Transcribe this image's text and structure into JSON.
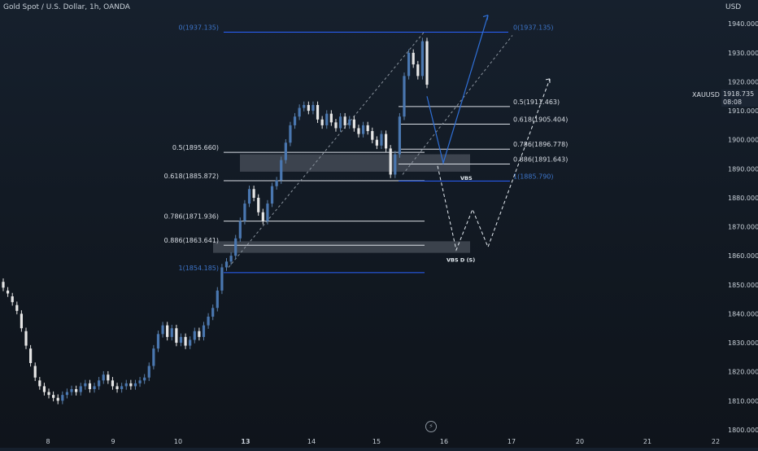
{
  "header": {
    "title": "Gold Spot / U.S. Dollar, 1h, OANDA",
    "currency": "USD",
    "symbol": "XAUUSD",
    "last_price": "1918.735",
    "countdown": "08:08"
  },
  "chart_data": {
    "type": "candlestick",
    "title": "Gold Spot / U.S. Dollar, 1h, OANDA",
    "ylim": [
      1798,
      1944
    ],
    "y_ticks": [
      "1940.000",
      "1930.000",
      "1920.000",
      "1910.000",
      "1900.000",
      "1890.000",
      "1880.000",
      "1870.000",
      "1860.000",
      "1850.000",
      "1840.000",
      "1830.000",
      "1820.000",
      "1810.000",
      "1800.000"
    ],
    "x_ticks": [
      "8",
      "9",
      "10",
      "13",
      "14",
      "15",
      "16",
      "17",
      "20",
      "21",
      "22"
    ],
    "x_ticks_bold": [
      "13"
    ],
    "candle_path": [
      [
        1851,
        1849
      ],
      [
        1848,
        1847
      ],
      [
        1846,
        1844
      ],
      [
        1843,
        1841
      ],
      [
        1840,
        1835
      ],
      [
        1834,
        1829
      ],
      [
        1828,
        1823
      ],
      [
        1822,
        1818
      ],
      [
        1817,
        1815
      ],
      [
        1815,
        1813
      ],
      [
        1813,
        1812
      ],
      [
        1812,
        1811
      ],
      [
        1811,
        1810
      ],
      [
        1810,
        1812
      ],
      [
        1812,
        1813
      ],
      [
        1813,
        1814
      ],
      [
        1814,
        1813
      ],
      [
        1813,
        1815
      ],
      [
        1815,
        1816
      ],
      [
        1816,
        1814
      ],
      [
        1814,
        1815
      ],
      [
        1815,
        1817
      ],
      [
        1817,
        1819
      ],
      [
        1819,
        1817
      ],
      [
        1817,
        1815
      ],
      [
        1815,
        1814
      ],
      [
        1814,
        1815
      ],
      [
        1815,
        1816
      ],
      [
        1816,
        1815
      ],
      [
        1815,
        1816
      ],
      [
        1816,
        1817
      ],
      [
        1817,
        1818
      ],
      [
        1818,
        1822
      ],
      [
        1822,
        1828
      ],
      [
        1828,
        1833
      ],
      [
        1833,
        1836
      ],
      [
        1836,
        1832
      ],
      [
        1832,
        1835
      ],
      [
        1835,
        1830
      ],
      [
        1830,
        1832
      ],
      [
        1832,
        1829
      ],
      [
        1829,
        1831
      ],
      [
        1831,
        1834
      ],
      [
        1834,
        1832
      ],
      [
        1832,
        1836
      ],
      [
        1836,
        1839
      ],
      [
        1839,
        1842
      ],
      [
        1842,
        1848
      ],
      [
        1848,
        1856
      ],
      [
        1856,
        1858
      ],
      [
        1858,
        1860
      ],
      [
        1860,
        1866
      ],
      [
        1866,
        1872
      ],
      [
        1872,
        1878
      ],
      [
        1878,
        1883
      ],
      [
        1883,
        1880
      ],
      [
        1880,
        1875
      ],
      [
        1875,
        1872
      ],
      [
        1872,
        1878
      ],
      [
        1878,
        1884
      ],
      [
        1884,
        1886
      ],
      [
        1886,
        1893
      ],
      [
        1893,
        1899
      ],
      [
        1899,
        1905
      ],
      [
        1905,
        1908
      ],
      [
        1908,
        1911
      ],
      [
        1911,
        1912
      ],
      [
        1912,
        1910
      ],
      [
        1910,
        1912
      ],
      [
        1912,
        1907
      ],
      [
        1907,
        1905
      ],
      [
        1905,
        1909
      ],
      [
        1909,
        1906
      ],
      [
        1906,
        1904
      ],
      [
        1904,
        1908
      ],
      [
        1908,
        1905
      ],
      [
        1905,
        1907
      ],
      [
        1907,
        1904
      ],
      [
        1904,
        1902
      ],
      [
        1902,
        1905
      ],
      [
        1905,
        1903
      ],
      [
        1903,
        1900
      ],
      [
        1900,
        1898
      ],
      [
        1898,
        1902
      ],
      [
        1902,
        1897
      ],
      [
        1897,
        1888
      ],
      [
        1888,
        1895
      ],
      [
        1895,
        1908
      ],
      [
        1908,
        1922
      ],
      [
        1922,
        1930
      ],
      [
        1930,
        1926
      ],
      [
        1926,
        1922
      ],
      [
        1922,
        1934
      ],
      [
        1934,
        1919
      ]
    ],
    "fib_left": {
      "labels": [
        "0(1937.135)",
        "0.5(1895.660)",
        "0.618(1885.872)",
        "0.786(1871.936)",
        "0.886(1863.641)",
        "1(1854.185)"
      ],
      "levels": [
        1937.135,
        1895.66,
        1885.872,
        1871.936,
        1863.641,
        1854.185
      ],
      "colors": [
        "#2962ff",
        "#d9dee5",
        "#d9dee5",
        "#d9dee5",
        "#d9dee5",
        "#2962ff"
      ]
    },
    "fib_right": {
      "labels": [
        "0(1937.135)",
        "0.5(1911.463)",
        "0.618(1905.404)",
        "0.786(1896.778)",
        "0.886(1891.643)",
        "1(1885.790)"
      ],
      "levels": [
        1937.135,
        1911.463,
        1905.404,
        1896.778,
        1891.643,
        1885.79
      ],
      "colors": [
        "#2962ff",
        "#d9dee5",
        "#d9dee5",
        "#d9dee5",
        "#d9dee5",
        "#2962ff"
      ]
    },
    "zones": [
      {
        "label": "VBS",
        "top": 1895.0,
        "bottom": 1889.0
      },
      {
        "label": "VBS D (S)",
        "top": 1865.0,
        "bottom": 1861.0
      }
    ],
    "projection_blue": [
      [
        1892,
        1922
      ],
      [
        1936,
        1938
      ]
    ],
    "projection_dashed": [
      [
        1891,
        1891
      ],
      [
        1862,
        1876
      ],
      [
        1863,
        1920
      ]
    ]
  }
}
